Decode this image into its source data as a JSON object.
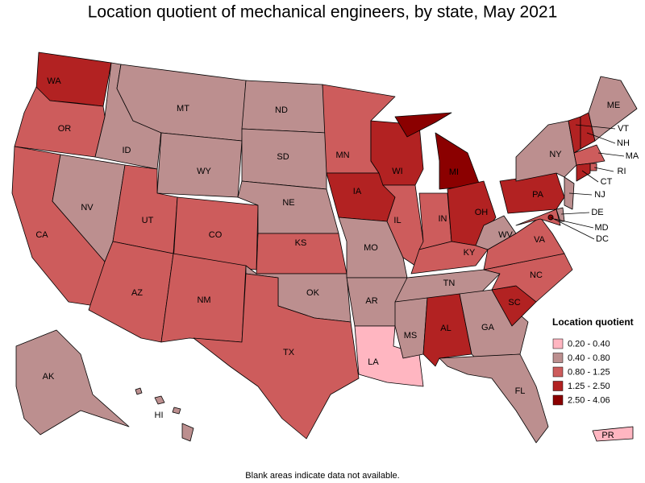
{
  "title": "Location quotient of mechanical engineers, by state, May 2021",
  "legend": {
    "title": "Location quotient",
    "items": [
      {
        "label": "0.20 - 0.40",
        "color": "#ffb6c1"
      },
      {
        "label": "0.40 - 0.80",
        "color": "#bc8f8f"
      },
      {
        "label": "0.80 - 1.25",
        "color": "#cd5c5c"
      },
      {
        "label": "1.25 - 2.50",
        "color": "#b22222"
      },
      {
        "label": "2.50 - 4.06",
        "color": "#8b0000"
      }
    ]
  },
  "states": [
    {
      "label": "WA",
      "color": "#b22222"
    },
    {
      "label": "OR",
      "color": "#cd5c5c"
    },
    {
      "label": "CA",
      "color": "#cd5c5c"
    },
    {
      "label": "NV",
      "color": "#bc8f8f"
    },
    {
      "label": "ID",
      "color": "#bc8f8f"
    },
    {
      "label": "MT",
      "color": "#bc8f8f"
    },
    {
      "label": "WY",
      "color": "#bc8f8f"
    },
    {
      "label": "UT",
      "color": "#cd5c5c"
    },
    {
      "label": "CO",
      "color": "#cd5c5c"
    },
    {
      "label": "AZ",
      "color": "#cd5c5c"
    },
    {
      "label": "NM",
      "color": "#cd5c5c"
    },
    {
      "label": "ND",
      "color": "#bc8f8f"
    },
    {
      "label": "SD",
      "color": "#bc8f8f"
    },
    {
      "label": "NE",
      "color": "#bc8f8f"
    },
    {
      "label": "KS",
      "color": "#cd5c5c"
    },
    {
      "label": "OK",
      "color": "#bc8f8f"
    },
    {
      "label": "TX",
      "color": "#cd5c5c"
    },
    {
      "label": "MN",
      "color": "#cd5c5c"
    },
    {
      "label": "IA",
      "color": "#b22222"
    },
    {
      "label": "MO",
      "color": "#bc8f8f"
    },
    {
      "label": "AR",
      "color": "#bc8f8f"
    },
    {
      "label": "LA",
      "color": "#ffb6c1"
    },
    {
      "label": "WI",
      "color": "#b22222"
    },
    {
      "label": "IL",
      "color": "#cd5c5c"
    },
    {
      "label": "MI",
      "color": "#8b0000"
    },
    {
      "label": "IN",
      "color": "#cd5c5c"
    },
    {
      "label": "OH",
      "color": "#b22222"
    },
    {
      "label": "KY",
      "color": "#cd5c5c"
    },
    {
      "label": "TN",
      "color": "#bc8f8f"
    },
    {
      "label": "MS",
      "color": "#bc8f8f"
    },
    {
      "label": "AL",
      "color": "#b22222"
    },
    {
      "label": "GA",
      "color": "#bc8f8f"
    },
    {
      "label": "FL",
      "color": "#bc8f8f"
    },
    {
      "label": "SC",
      "color": "#b22222"
    },
    {
      "label": "NC",
      "color": "#cd5c5c"
    },
    {
      "label": "VA",
      "color": "#cd5c5c"
    },
    {
      "label": "WV",
      "color": "#bc8f8f"
    },
    {
      "label": "PA",
      "color": "#b22222"
    },
    {
      "label": "NY",
      "color": "#bc8f8f"
    },
    {
      "label": "VT",
      "color": "#b22222"
    },
    {
      "label": "NH",
      "color": "#b22222"
    },
    {
      "label": "ME",
      "color": "#bc8f8f"
    },
    {
      "label": "MA",
      "color": "#cd5c5c"
    },
    {
      "label": "RI",
      "color": "#cd5c5c"
    },
    {
      "label": "CT",
      "color": "#b22222"
    },
    {
      "label": "NJ",
      "color": "#bc8f8f"
    },
    {
      "label": "DE",
      "color": "#bc8f8f"
    },
    {
      "label": "MD",
      "color": "#cd5c5c"
    },
    {
      "label": "DC",
      "color": "#8b0000"
    },
    {
      "label": "AK",
      "color": "#bc8f8f"
    },
    {
      "label": "HI",
      "color": "#bc8f8f"
    },
    {
      "label": "PR",
      "color": "#ffb6c1"
    }
  ],
  "footnote": "Blank areas indicate data not available."
}
